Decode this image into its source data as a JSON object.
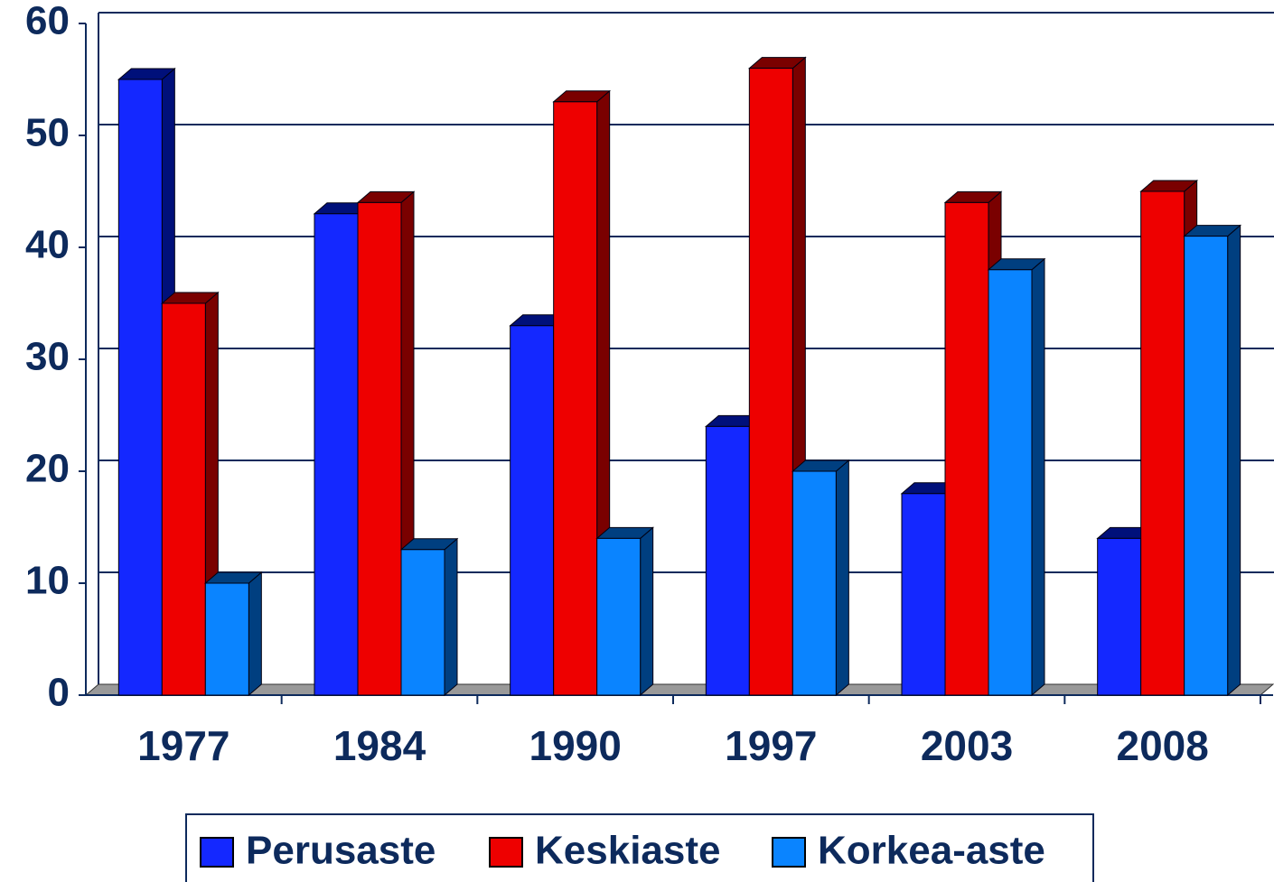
{
  "chart_data": {
    "type": "bar3d",
    "categories": [
      "1977",
      "1984",
      "1990",
      "1997",
      "2003",
      "2008"
    ],
    "series": [
      {
        "name": "Perusaste",
        "color": "#1428ff",
        "side": "#00107a",
        "values": [
          55,
          43,
          33,
          24,
          18,
          14
        ]
      },
      {
        "name": "Keskiaste",
        "color": "#ee0000",
        "side": "#7a0000",
        "values": [
          35,
          44,
          53,
          56,
          44,
          45
        ]
      },
      {
        "name": "Korkea-aste",
        "color": "#0a84ff",
        "side": "#003f80",
        "values": [
          10,
          13,
          14,
          20,
          38,
          41
        ]
      }
    ],
    "ylim": [
      0,
      60
    ],
    "yticks": [
      0,
      10,
      20,
      30,
      40,
      50,
      60
    ],
    "grid": true,
    "legend": "bottom"
  }
}
